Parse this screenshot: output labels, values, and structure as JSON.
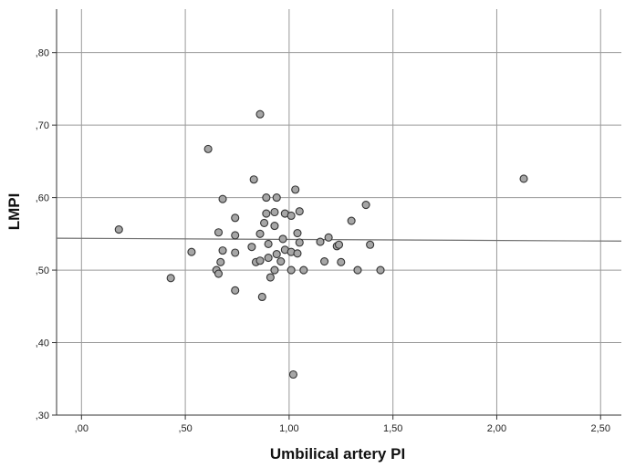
{
  "chart_data": {
    "type": "scatter",
    "title": "",
    "xlabel": "Umbilical artery PI",
    "ylabel": "LMPI",
    "xlim": [
      -0.12,
      2.6
    ],
    "ylim": [
      0.3,
      0.86
    ],
    "x_ticks": [
      0.0,
      0.5,
      1.0,
      1.5,
      2.0,
      2.5
    ],
    "x_tick_labels": [
      ",00",
      ",50",
      "1,00",
      "1,50",
      "2,00",
      "2,50"
    ],
    "y_ticks": [
      0.3,
      0.4,
      0.5,
      0.6,
      0.7,
      0.8
    ],
    "y_tick_labels": [
      ",30",
      ",40",
      ",50",
      ",60",
      ",70",
      ",80"
    ],
    "grid": true,
    "legend": "none",
    "point_color": "#a6a6a6",
    "point_edge_color": "#333333",
    "fit_line": {
      "x": [
        -0.12,
        2.6
      ],
      "y": [
        0.544,
        0.54
      ]
    },
    "points": [
      [
        0.18,
        0.556
      ],
      [
        0.43,
        0.489
      ],
      [
        0.53,
        0.525
      ],
      [
        0.61,
        0.667
      ],
      [
        0.65,
        0.5
      ],
      [
        0.66,
        0.495
      ],
      [
        0.66,
        0.552
      ],
      [
        0.67,
        0.511
      ],
      [
        0.68,
        0.527
      ],
      [
        0.68,
        0.598
      ],
      [
        0.74,
        0.472
      ],
      [
        0.74,
        0.524
      ],
      [
        0.74,
        0.572
      ],
      [
        0.74,
        0.548
      ],
      [
        0.82,
        0.532
      ],
      [
        0.83,
        0.625
      ],
      [
        0.84,
        0.511
      ],
      [
        0.86,
        0.513
      ],
      [
        0.86,
        0.55
      ],
      [
        0.86,
        0.715
      ],
      [
        0.87,
        0.463
      ],
      [
        0.88,
        0.565
      ],
      [
        0.89,
        0.6
      ],
      [
        0.89,
        0.578
      ],
      [
        0.9,
        0.536
      ],
      [
        0.9,
        0.517
      ],
      [
        0.91,
        0.49
      ],
      [
        0.93,
        0.5
      ],
      [
        0.93,
        0.58
      ],
      [
        0.93,
        0.561
      ],
      [
        0.94,
        0.6
      ],
      [
        0.94,
        0.522
      ],
      [
        0.96,
        0.512
      ],
      [
        0.97,
        0.543
      ],
      [
        0.98,
        0.578
      ],
      [
        0.98,
        0.528
      ],
      [
        1.01,
        0.5
      ],
      [
        1.01,
        0.575
      ],
      [
        1.01,
        0.525
      ],
      [
        1.02,
        0.356
      ],
      [
        1.03,
        0.611
      ],
      [
        1.04,
        0.523
      ],
      [
        1.04,
        0.551
      ],
      [
        1.05,
        0.581
      ],
      [
        1.05,
        0.538
      ],
      [
        1.07,
        0.5
      ],
      [
        1.15,
        0.539
      ],
      [
        1.17,
        0.512
      ],
      [
        1.19,
        0.545
      ],
      [
        1.23,
        0.533
      ],
      [
        1.25,
        0.511
      ],
      [
        1.24,
        0.535
      ],
      [
        1.3,
        0.568
      ],
      [
        1.33,
        0.5
      ],
      [
        1.37,
        0.59
      ],
      [
        1.39,
        0.535
      ],
      [
        1.44,
        0.5
      ],
      [
        2.13,
        0.626
      ]
    ]
  }
}
